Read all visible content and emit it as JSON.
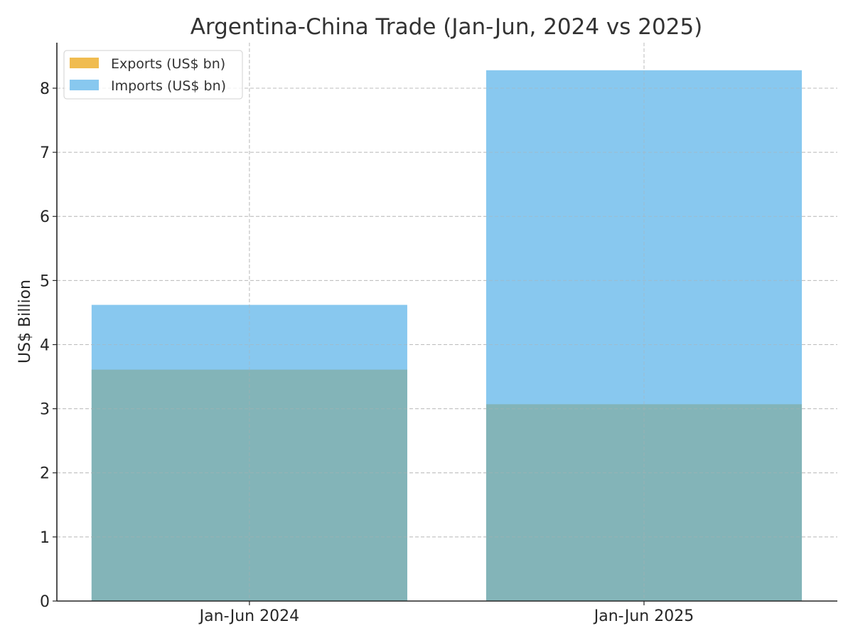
{
  "chart_data": {
    "type": "bar",
    "title": "Argentina-China Trade (Jan-Jun, 2024 vs 2025)",
    "xlabel": "",
    "ylabel": "US$ Billion",
    "categories": [
      "Jan-Jun 2024",
      "Jan-Jun 2025"
    ],
    "series": [
      {
        "name": "Exports (US$ bn)",
        "values": [
          3.61,
          3.07
        ],
        "color": "#f0bc50"
      },
      {
        "name": "Imports (US$ bn)",
        "values": [
          4.62,
          8.28
        ],
        "color": "#88c8ef"
      }
    ],
    "overlap_color": "#83b4b8",
    "ylim": [
      0,
      8.71
    ],
    "yticks": [
      0,
      1,
      2,
      3,
      4,
      5,
      6,
      7,
      8
    ],
    "grid": true,
    "legend_position": "top-left"
  }
}
